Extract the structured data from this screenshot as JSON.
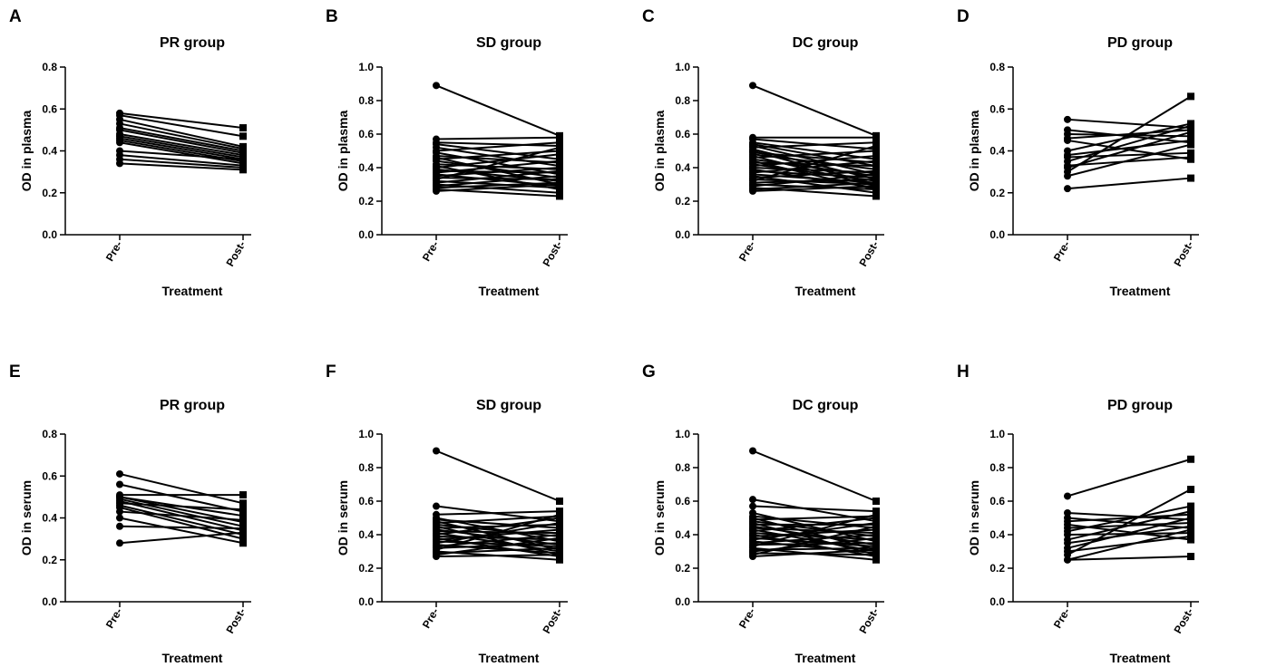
{
  "chart_data": [
    {
      "letter": "A",
      "type": "line",
      "title": "PR group",
      "xlabel": "Treatment",
      "ylabel": "OD in plasma",
      "categories": [
        "Pre-",
        "Post-"
      ],
      "ylim": [
        0,
        0.8
      ],
      "yticks": [
        "0.0",
        "0.2",
        "0.4",
        "0.6",
        "0.8"
      ],
      "pairs": [
        [
          0.58,
          0.51
        ],
        [
          0.57,
          0.47
        ],
        [
          0.55,
          0.42
        ],
        [
          0.53,
          0.41
        ],
        [
          0.51,
          0.4
        ],
        [
          0.5,
          0.39
        ],
        [
          0.48,
          0.38
        ],
        [
          0.47,
          0.37
        ],
        [
          0.46,
          0.36
        ],
        [
          0.45,
          0.35
        ],
        [
          0.44,
          0.34
        ],
        [
          0.4,
          0.36
        ],
        [
          0.38,
          0.33
        ],
        [
          0.36,
          0.32
        ],
        [
          0.34,
          0.31
        ]
      ]
    },
    {
      "letter": "B",
      "type": "line",
      "title": "SD group",
      "xlabel": "Treatment",
      "ylabel": "OD in plasma",
      "categories": [
        "Pre-",
        "Post-"
      ],
      "ylim": [
        0,
        1.0
      ],
      "yticks": [
        "0.0",
        "0.2",
        "0.4",
        "0.6",
        "0.8",
        "1.0"
      ],
      "pairs": [
        [
          0.89,
          0.59
        ],
        [
          0.57,
          0.58
        ],
        [
          0.55,
          0.53
        ],
        [
          0.54,
          0.45
        ],
        [
          0.52,
          0.41
        ],
        [
          0.5,
          0.55
        ],
        [
          0.49,
          0.36
        ],
        [
          0.47,
          0.43
        ],
        [
          0.46,
          0.3
        ],
        [
          0.45,
          0.5
        ],
        [
          0.44,
          0.34
        ],
        [
          0.42,
          0.39
        ],
        [
          0.41,
          0.27
        ],
        [
          0.4,
          0.48
        ],
        [
          0.39,
          0.32
        ],
        [
          0.38,
          0.37
        ],
        [
          0.37,
          0.44
        ],
        [
          0.36,
          0.29
        ],
        [
          0.35,
          0.4
        ],
        [
          0.34,
          0.33
        ],
        [
          0.33,
          0.52
        ],
        [
          0.32,
          0.28
        ],
        [
          0.31,
          0.38
        ],
        [
          0.3,
          0.25
        ],
        [
          0.29,
          0.35
        ],
        [
          0.28,
          0.31
        ],
        [
          0.27,
          0.23
        ],
        [
          0.26,
          0.3
        ]
      ]
    },
    {
      "letter": "C",
      "type": "line",
      "title": "DC group",
      "xlabel": "Treatment",
      "ylabel": "OD in plasma",
      "categories": [
        "Pre-",
        "Post-"
      ],
      "ylim": [
        0,
        1.0
      ],
      "yticks": [
        "0.0",
        "0.2",
        "0.4",
        "0.6",
        "0.8",
        "1.0"
      ],
      "pairs": [
        [
          0.89,
          0.59
        ],
        [
          0.58,
          0.58
        ],
        [
          0.57,
          0.51
        ],
        [
          0.55,
          0.45
        ],
        [
          0.54,
          0.41
        ],
        [
          0.53,
          0.36
        ],
        [
          0.52,
          0.55
        ],
        [
          0.51,
          0.33
        ],
        [
          0.5,
          0.3
        ],
        [
          0.49,
          0.43
        ],
        [
          0.48,
          0.39
        ],
        [
          0.47,
          0.29
        ],
        [
          0.46,
          0.5
        ],
        [
          0.45,
          0.35
        ],
        [
          0.44,
          0.27
        ],
        [
          0.43,
          0.41
        ],
        [
          0.42,
          0.32
        ],
        [
          0.41,
          0.47
        ],
        [
          0.4,
          0.37
        ],
        [
          0.39,
          0.28
        ],
        [
          0.38,
          0.34
        ],
        [
          0.37,
          0.44
        ],
        [
          0.36,
          0.31
        ],
        [
          0.35,
          0.25
        ],
        [
          0.34,
          0.38
        ],
        [
          0.33,
          0.3
        ],
        [
          0.32,
          0.53
        ],
        [
          0.31,
          0.33
        ],
        [
          0.3,
          0.27
        ],
        [
          0.29,
          0.36
        ],
        [
          0.28,
          0.23
        ],
        [
          0.27,
          0.31
        ],
        [
          0.26,
          0.29
        ]
      ]
    },
    {
      "letter": "D",
      "type": "line",
      "title": "PD group",
      "xlabel": "Treatment",
      "ylabel": "OD in plasma",
      "categories": [
        "Pre-",
        "Post-"
      ],
      "ylim": [
        0,
        0.8
      ],
      "yticks": [
        "0.0",
        "0.2",
        "0.4",
        "0.6",
        "0.8"
      ],
      "pairs": [
        [
          0.55,
          0.51
        ],
        [
          0.5,
          0.44
        ],
        [
          0.48,
          0.47
        ],
        [
          0.46,
          0.5
        ],
        [
          0.45,
          0.36
        ],
        [
          0.4,
          0.53
        ],
        [
          0.38,
          0.45
        ],
        [
          0.37,
          0.39
        ],
        [
          0.35,
          0.52
        ],
        [
          0.33,
          0.37
        ],
        [
          0.32,
          0.49
        ],
        [
          0.3,
          0.66
        ],
        [
          0.28,
          0.43
        ],
        [
          0.22,
          0.27
        ]
      ]
    },
    {
      "letter": "E",
      "type": "line",
      "title": "PR group",
      "xlabel": "Treatment",
      "ylabel": "OD in serum",
      "categories": [
        "Pre-",
        "Post-"
      ],
      "ylim": [
        0,
        0.8
      ],
      "yticks": [
        "0.0",
        "0.2",
        "0.4",
        "0.6",
        "0.8"
      ],
      "pairs": [
        [
          0.61,
          0.47
        ],
        [
          0.56,
          0.43
        ],
        [
          0.51,
          0.51
        ],
        [
          0.5,
          0.41
        ],
        [
          0.5,
          0.38
        ],
        [
          0.49,
          0.36
        ],
        [
          0.48,
          0.34
        ],
        [
          0.47,
          0.44
        ],
        [
          0.46,
          0.32
        ],
        [
          0.45,
          0.3
        ],
        [
          0.43,
          0.39
        ],
        [
          0.4,
          0.28
        ],
        [
          0.36,
          0.35
        ],
        [
          0.28,
          0.33
        ]
      ]
    },
    {
      "letter": "F",
      "type": "line",
      "title": "SD group",
      "xlabel": "Treatment",
      "ylabel": "OD in serum",
      "categories": [
        "Pre-",
        "Post-"
      ],
      "ylim": [
        0,
        1.0
      ],
      "yticks": [
        "0.0",
        "0.2",
        "0.4",
        "0.6",
        "0.8",
        "1.0"
      ],
      "pairs": [
        [
          0.9,
          0.6
        ],
        [
          0.57,
          0.48
        ],
        [
          0.52,
          0.54
        ],
        [
          0.5,
          0.36
        ],
        [
          0.49,
          0.44
        ],
        [
          0.48,
          0.31
        ],
        [
          0.47,
          0.51
        ],
        [
          0.46,
          0.39
        ],
        [
          0.45,
          0.28
        ],
        [
          0.44,
          0.46
        ],
        [
          0.43,
          0.34
        ],
        [
          0.42,
          0.41
        ],
        [
          0.41,
          0.3
        ],
        [
          0.4,
          0.5
        ],
        [
          0.39,
          0.37
        ],
        [
          0.38,
          0.27
        ],
        [
          0.37,
          0.43
        ],
        [
          0.36,
          0.33
        ],
        [
          0.35,
          0.47
        ],
        [
          0.34,
          0.29
        ],
        [
          0.33,
          0.4
        ],
        [
          0.32,
          0.35
        ],
        [
          0.31,
          0.52
        ],
        [
          0.3,
          0.25
        ],
        [
          0.29,
          0.32
        ],
        [
          0.28,
          0.38
        ],
        [
          0.27,
          0.28
        ]
      ]
    },
    {
      "letter": "G",
      "type": "line",
      "title": "DC group",
      "xlabel": "Treatment",
      "ylabel": "OD in serum",
      "categories": [
        "Pre-",
        "Post-"
      ],
      "ylim": [
        0,
        1.0
      ],
      "yticks": [
        "0.0",
        "0.2",
        "0.4",
        "0.6",
        "0.8",
        "1.0"
      ],
      "pairs": [
        [
          0.9,
          0.6
        ],
        [
          0.61,
          0.48
        ],
        [
          0.57,
          0.54
        ],
        [
          0.53,
          0.36
        ],
        [
          0.51,
          0.44
        ],
        [
          0.5,
          0.31
        ],
        [
          0.49,
          0.51
        ],
        [
          0.48,
          0.39
        ],
        [
          0.47,
          0.28
        ],
        [
          0.46,
          0.46
        ],
        [
          0.45,
          0.34
        ],
        [
          0.44,
          0.41
        ],
        [
          0.43,
          0.3
        ],
        [
          0.42,
          0.5
        ],
        [
          0.41,
          0.37
        ],
        [
          0.4,
          0.27
        ],
        [
          0.39,
          0.43
        ],
        [
          0.38,
          0.33
        ],
        [
          0.37,
          0.47
        ],
        [
          0.36,
          0.29
        ],
        [
          0.35,
          0.4
        ],
        [
          0.34,
          0.35
        ],
        [
          0.33,
          0.52
        ],
        [
          0.32,
          0.25
        ],
        [
          0.31,
          0.32
        ],
        [
          0.3,
          0.38
        ],
        [
          0.29,
          0.28
        ],
        [
          0.28,
          0.45
        ],
        [
          0.27,
          0.31
        ]
      ]
    },
    {
      "letter": "H",
      "type": "line",
      "title": "PD group",
      "xlabel": "Treatment",
      "ylabel": "OD in serum",
      "categories": [
        "Pre-",
        "Post-"
      ],
      "ylim": [
        0,
        1.0
      ],
      "yticks": [
        "0.0",
        "0.2",
        "0.4",
        "0.6",
        "0.8",
        "1.0"
      ],
      "pairs": [
        [
          0.63,
          0.85
        ],
        [
          0.53,
          0.49
        ],
        [
          0.5,
          0.44
        ],
        [
          0.48,
          0.52
        ],
        [
          0.46,
          0.37
        ],
        [
          0.44,
          0.47
        ],
        [
          0.42,
          0.57
        ],
        [
          0.4,
          0.41
        ],
        [
          0.37,
          0.54
        ],
        [
          0.35,
          0.45
        ],
        [
          0.32,
          0.5
        ],
        [
          0.3,
          0.39
        ],
        [
          0.28,
          0.67
        ],
        [
          0.25,
          0.43
        ],
        [
          0.25,
          0.27
        ]
      ]
    }
  ]
}
